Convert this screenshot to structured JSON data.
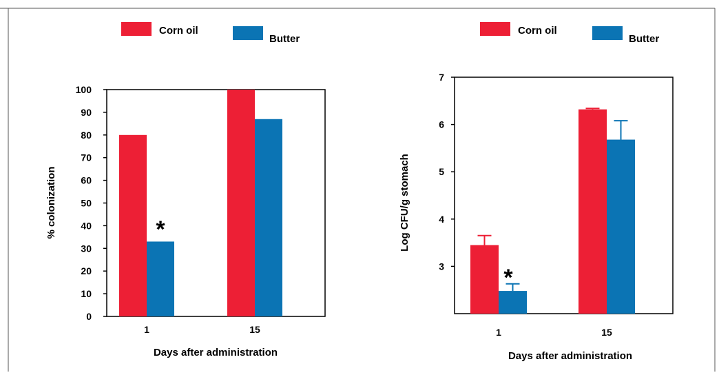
{
  "colors": {
    "corn_oil": "#ed1f35",
    "butter": "#0b74b4",
    "axis": "#000000",
    "frame": "#555555"
  },
  "chart_data": [
    {
      "type": "bar",
      "categories": [
        "1",
        "15"
      ],
      "series": [
        {
          "name": "Corn oil",
          "values": [
            80,
            100
          ]
        },
        {
          "name": "Butter",
          "values": [
            33,
            87
          ]
        }
      ],
      "xlabel": "Days after administration",
      "ylabel": "% colonization",
      "ylim": [
        0,
        100
      ],
      "yticks": [
        "0",
        "10",
        "20",
        "30",
        "40",
        "50",
        "60",
        "70",
        "80",
        "90",
        "100"
      ],
      "legend": {
        "position": "top",
        "labels": [
          "Corn oil",
          "Butter"
        ]
      },
      "annotations": [
        {
          "text": "*",
          "category": "1",
          "series": "Butter"
        }
      ],
      "grid": false
    },
    {
      "type": "bar",
      "categories": [
        "1",
        "15"
      ],
      "series": [
        {
          "name": "Corn oil",
          "values": [
            3.45,
            6.32
          ],
          "error": [
            0.2,
            0.02
          ]
        },
        {
          "name": "Butter",
          "values": [
            2.48,
            5.68
          ],
          "error": [
            0.15,
            0.4
          ]
        }
      ],
      "xlabel": "Days after administration",
      "ylabel": "Log CFU/g stomach",
      "ylim": [
        2,
        7
      ],
      "yticks": [
        "3",
        "4",
        "5",
        "6",
        "7"
      ],
      "legend": {
        "position": "top",
        "labels": [
          "Corn oil",
          "Butter"
        ]
      },
      "annotations": [
        {
          "text": "*",
          "category": "1",
          "series": "Butter"
        }
      ],
      "grid": false
    }
  ]
}
